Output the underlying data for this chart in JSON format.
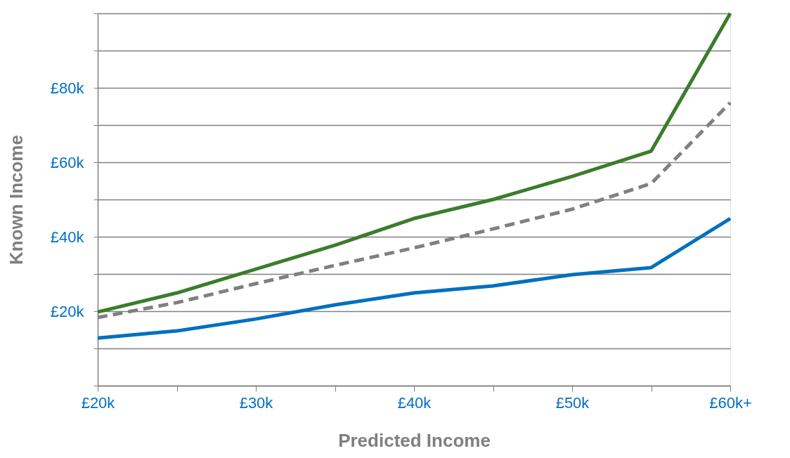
{
  "chart_data": {
    "type": "line",
    "xlabel": "Predicted Income",
    "ylabel": "Known Income",
    "x": [
      20,
      25,
      30,
      35,
      40,
      45,
      50,
      55,
      60
    ],
    "xlim": [
      20,
      60
    ],
    "xticks": [
      {
        "value": 20,
        "label": "£20k"
      },
      {
        "value": 25,
        "label": null
      },
      {
        "value": 30,
        "label": "£30k"
      },
      {
        "value": 35,
        "label": null
      },
      {
        "value": 40,
        "label": "£40k"
      },
      {
        "value": 45,
        "label": null
      },
      {
        "value": 50,
        "label": "£50k"
      },
      {
        "value": 55,
        "label": null
      },
      {
        "value": 60,
        "label": "£60k+"
      }
    ],
    "ylim": [
      0,
      100
    ],
    "yticks": [
      {
        "value": 0,
        "label": null
      },
      {
        "value": 10,
        "label": null
      },
      {
        "value": 20,
        "label": "£20k"
      },
      {
        "value": 30,
        "label": null
      },
      {
        "value": 40,
        "label": "£40k"
      },
      {
        "value": 50,
        "label": null
      },
      {
        "value": 60,
        "label": "£60k"
      },
      {
        "value": 70,
        "label": null
      },
      {
        "value": 80,
        "label": "£80k"
      },
      {
        "value": 90,
        "label": null
      },
      {
        "value": 100,
        "label": null
      }
    ],
    "grid": "y",
    "marker": "none",
    "series": [
      {
        "color": "#3a7d2c",
        "line_style": "solid",
        "values": [
          19.8,
          24.9,
          31.3,
          37.7,
          44.9,
          50,
          56.2,
          63,
          100
        ]
      },
      {
        "color": "#808080",
        "line_style": "dashed",
        "values": [
          18.3,
          22.3,
          27.4,
          32.3,
          37,
          42.1,
          47.4,
          54.3,
          76
        ]
      },
      {
        "color": "#0070c0",
        "line_style": "solid",
        "values": [
          12.8,
          14.7,
          17.9,
          21.7,
          24.9,
          26.8,
          29.8,
          31.7,
          44.9
        ]
      }
    ]
  }
}
